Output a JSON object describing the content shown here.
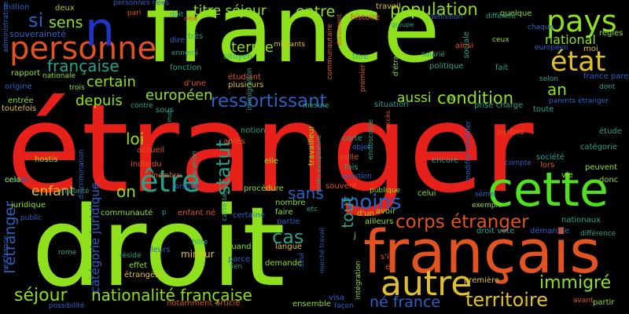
{
  "background": "#000000",
  "palette": {
    "red": "#e8201a",
    "green": "#8fe01c",
    "lime": "#4fe01e",
    "orange": "#e2531f",
    "yellow": "#e0c02a",
    "teal": "#27a28a",
    "blue": "#2a62c4",
    "navy": "#1f35c8",
    "cyan": "#22b9a0",
    "olive": "#b6c21a"
  },
  "words": [
    {
      "text": "étranger",
      "color": "red"
    },
    {
      "text": "france",
      "color": "green"
    },
    {
      "text": "droit",
      "color": "green"
    },
    {
      "text": "français",
      "color": "orange"
    },
    {
      "text": "cette",
      "color": "lime"
    },
    {
      "text": "pays",
      "color": "green"
    },
    {
      "text": "personne",
      "color": "orange"
    },
    {
      "text": "n",
      "color": "navy"
    },
    {
      "text": "état",
      "color": "yellow"
    },
    {
      "text": "être",
      "color": "teal"
    },
    {
      "text": "autre",
      "color": "yellow"
    },
    {
      "text": "corps étranger",
      "color": "orange"
    },
    {
      "text": "moins",
      "color": "blue"
    },
    {
      "text": "ressortissant",
      "color": "blue"
    },
    {
      "text": "condition",
      "color": "green"
    },
    {
      "text": "population",
      "color": "green"
    },
    {
      "text": "titre séjour",
      "color": "green"
    },
    {
      "text": "entre",
      "color": "green"
    },
    {
      "text": "territoire",
      "color": "yellow"
    },
    {
      "text": "séjour",
      "color": "green"
    },
    {
      "text": "nationalité française",
      "color": "green"
    },
    {
      "text": "immigré",
      "color": "green"
    },
    {
      "text": "né france",
      "color": "blue"
    },
    {
      "text": "statut",
      "color": "teal"
    },
    {
      "text": "cas",
      "color": "teal"
    },
    {
      "text": "enfant",
      "color": "yellow"
    },
    {
      "text": "sans",
      "color": "blue"
    },
    {
      "text": "on",
      "color": "green"
    },
    {
      "text": "loi",
      "color": "green"
    },
    {
      "text": "européen",
      "color": "green"
    },
    {
      "text": "depuis",
      "color": "green"
    },
    {
      "text": "certain",
      "color": "green"
    },
    {
      "text": "française",
      "color": "teal"
    },
    {
      "text": "sens",
      "color": "green"
    },
    {
      "text": "si",
      "color": "blue"
    },
    {
      "text": "terme",
      "color": "green"
    },
    {
      "text": "national",
      "color": "green"
    },
    {
      "text": "an",
      "color": "green"
    },
    {
      "text": "aussi",
      "color": "green"
    },
    {
      "text": "tout",
      "color": "teal"
    },
    {
      "text": "l'étranger",
      "color": "blue"
    },
    {
      "text": "catégorie juridique",
      "color": "blue"
    },
    {
      "text": "souveraineté",
      "color": "blue"
    },
    {
      "text": "personnes nées",
      "color": "blue"
    },
    {
      "text": "deux",
      "color": "olive"
    },
    {
      "text": "pari",
      "color": "orange"
    },
    {
      "text": "doit",
      "color": "teal"
    },
    {
      "text": "travail",
      "color": "yellow"
    },
    {
      "text": "histoire",
      "color": "orange"
    },
    {
      "text": "quelque",
      "color": "green"
    },
    {
      "text": "groupe",
      "color": "teal"
    },
    {
      "text": "définition",
      "color": "blue"
    },
    {
      "text": "différent",
      "color": "teal"
    },
    {
      "text": "chaque",
      "color": "blue"
    },
    {
      "text": "règles",
      "color": "green"
    },
    {
      "text": "moi",
      "color": "yellow"
    },
    {
      "text": "ceux",
      "color": "green"
    },
    {
      "text": "européen",
      "color": "blue"
    },
    {
      "text": "dire",
      "color": "blue"
    },
    {
      "text": "très",
      "color": "teal"
    },
    {
      "text": "ennemi",
      "color": "teal"
    },
    {
      "text": "fonction",
      "color": "teal"
    },
    {
      "text": "citoyen",
      "color": "teal"
    },
    {
      "text": "migrants",
      "color": "yellow"
    },
    {
      "text": "titre",
      "color": "teal"
    },
    {
      "text": "sociale",
      "color": "teal"
    },
    {
      "text": "ainsi",
      "color": "orange"
    },
    {
      "text": "salarié",
      "color": "teal"
    },
    {
      "text": "politique",
      "color": "teal"
    },
    {
      "text": "fait",
      "color": "teal"
    },
    {
      "text": "france parent",
      "color": "blue"
    },
    {
      "text": "selon",
      "color": "teal"
    },
    {
      "text": "dont",
      "color": "teal"
    },
    {
      "text": "parents étranger",
      "color": "blue"
    },
    {
      "text": "toute",
      "color": "teal"
    },
    {
      "text": "million",
      "color": "blue"
    },
    {
      "text": "rapport",
      "color": "green"
    },
    {
      "text": "nationale",
      "color": "green"
    },
    {
      "text": "origine",
      "color": "blue"
    },
    {
      "text": "entrée",
      "color": "green"
    },
    {
      "text": "toutefois",
      "color": "yellow"
    },
    {
      "text": "trois",
      "color": "green"
    },
    {
      "text": "contre",
      "color": "teal"
    },
    {
      "text": "sous",
      "color": "teal"
    },
    {
      "text": "d'une",
      "color": "orange"
    },
    {
      "text": "étudiant",
      "color": "orange"
    },
    {
      "text": "plusieurs",
      "color": "yellow"
    },
    {
      "text": "mesure",
      "color": "teal"
    },
    {
      "text": "situation",
      "color": "teal"
    },
    {
      "text": "prise charge",
      "color": "teal"
    },
    {
      "text": "là",
      "color": "green"
    },
    {
      "text": "notion",
      "color": "teal"
    },
    {
      "text": "après",
      "color": "orange"
    },
    {
      "text": "carte",
      "color": "teal"
    },
    {
      "text": "accueil",
      "color": "orange"
    },
    {
      "text": "individu",
      "color": "orange"
    },
    {
      "text": "elle",
      "color": "green"
    },
    {
      "text": "celle",
      "color": "orange"
    },
    {
      "text": "fois",
      "color": "teal"
    },
    {
      "text": "objet",
      "color": "blue"
    },
    {
      "text": "question",
      "color": "blue"
    },
    {
      "text": "encore",
      "color": "teal"
    },
    {
      "text": "société",
      "color": "teal"
    },
    {
      "text": "lors",
      "color": "orange"
    },
    {
      "text": "compte",
      "color": "blue"
    },
    {
      "text": "étude",
      "color": "teal"
    },
    {
      "text": "catégorie",
      "color": "teal"
    },
    {
      "text": "peuvent",
      "color": "green"
    },
    {
      "text": "donc",
      "color": "green"
    },
    {
      "text": "vie",
      "color": "green"
    },
    {
      "text": "parfois",
      "color": "orange"
    },
    {
      "text": "hostis",
      "color": "green"
    },
    {
      "text": "année",
      "color": "blue"
    },
    {
      "text": "cela",
      "color": "green"
    },
    {
      "text": "juridique",
      "color": "green"
    },
    {
      "text": "majorité",
      "color": "teal"
    },
    {
      "text": "public",
      "color": "blue"
    },
    {
      "text": "communauté",
      "color": "green"
    },
    {
      "text": "p",
      "color": "teal"
    },
    {
      "text": "enfant né",
      "color": "orange"
    },
    {
      "text": "lorsque",
      "color": "blue"
    },
    {
      "text": "membre",
      "color": "orange"
    },
    {
      "text": "procédure",
      "color": "green"
    },
    {
      "text": "certaine",
      "color": "blue"
    },
    {
      "text": "nombre",
      "color": "green"
    },
    {
      "text": "faire",
      "color": "green"
    },
    {
      "text": "partie",
      "color": "blue"
    },
    {
      "text": "etc",
      "color": "teal"
    },
    {
      "text": "souvent",
      "color": "orange"
    },
    {
      "text": "publique",
      "color": "green"
    },
    {
      "text": "celui",
      "color": "green"
    },
    {
      "text": "sème",
      "color": "blue"
    },
    {
      "text": "exemple",
      "color": "green"
    },
    {
      "text": "nationaux",
      "color": "teal"
    },
    {
      "text": "droit vote",
      "color": "teal"
    },
    {
      "text": "démarche",
      "color": "blue"
    },
    {
      "text": "différence",
      "color": "teal"
    },
    {
      "text": "d'un",
      "color": "green"
    },
    {
      "text": "avoir",
      "color": "green"
    },
    {
      "text": "ailleurs",
      "color": "green"
    },
    {
      "text": "langue",
      "color": "yellow"
    },
    {
      "text": "hôte",
      "color": "teal"
    },
    {
      "text": "mineur",
      "color": "yellow"
    },
    {
      "text": "quand",
      "color": "green"
    },
    {
      "text": "leurs",
      "color": "blue"
    },
    {
      "text": "parce",
      "color": "blue"
    },
    {
      "text": "lien",
      "color": "teal"
    },
    {
      "text": "demande",
      "color": "green"
    },
    {
      "text": "rome",
      "color": "teal"
    },
    {
      "text": "réside",
      "color": "teal"
    },
    {
      "text": "effet",
      "color": "green"
    },
    {
      "text": "étrangère",
      "color": "yellow"
    },
    {
      "text": "s'il",
      "color": "orange"
    },
    {
      "text": "ex",
      "color": "orange"
    },
    {
      "text": "première",
      "color": "yellow"
    },
    {
      "text": "visa",
      "color": "blue"
    },
    {
      "text": "ensemble",
      "color": "green"
    },
    {
      "text": "façon",
      "color": "blue"
    },
    {
      "text": "notamment",
      "color": "orange"
    },
    {
      "text": "article",
      "color": "orange"
    },
    {
      "text": "possibilité",
      "color": "blue"
    },
    {
      "text": "avant",
      "color": "orange"
    },
    {
      "text": "partir",
      "color": "green"
    },
    {
      "text": "administrative",
      "color": "blue"
    },
    {
      "text": "communautaire",
      "color": "orange"
    },
    {
      "text": "document",
      "color": "orange"
    },
    {
      "text": "premier",
      "color": "orange"
    },
    {
      "text": "immigration",
      "color": "teal"
    },
    {
      "text": "d'étranger",
      "color": "green"
    },
    {
      "text": "accès",
      "color": "orange"
    },
    {
      "text": "endoscopie",
      "color": "teal"
    },
    {
      "text": "modifier modifier",
      "color": "blue"
    },
    {
      "text": "déclaration",
      "color": "teal"
    },
    {
      "text": "discrimination",
      "color": "blue"
    },
    {
      "text": "mot",
      "color": "teal"
    },
    {
      "text": "déjà",
      "color": "orange"
    },
    {
      "text": "travailleur",
      "color": "green"
    },
    {
      "text": "union européenne",
      "color": "teal"
    },
    {
      "text": "carte séjour",
      "color": "teal"
    },
    {
      "text": "marché travail",
      "color": "blue"
    },
    {
      "text": "seul",
      "color": "blue"
    },
    {
      "text": "intégration",
      "color": "green"
    },
    {
      "text": "j",
      "color": "green"
    },
    {
      "text": "nés france",
      "color": "blue"
    }
  ]
}
